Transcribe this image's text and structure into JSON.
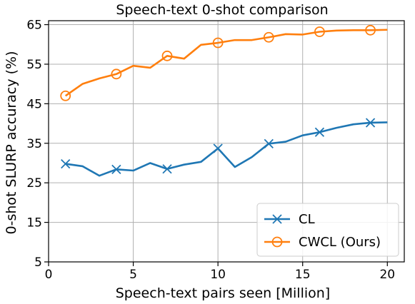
{
  "chart_data": {
    "type": "line",
    "title": "Speech-text 0-shot comparison",
    "xlabel": "Speech-text pairs seen [Million]",
    "ylabel": "0-shot SLURP accuracy (%)",
    "xlim": [
      0,
      21
    ],
    "ylim": [
      5,
      66
    ],
    "xticks": [
      0,
      5,
      10,
      15,
      20
    ],
    "yticks": [
      5,
      15,
      25,
      35,
      45,
      55,
      65
    ],
    "grid": true,
    "legend_position": "lower-right",
    "x": [
      1,
      2,
      3,
      4,
      5,
      6,
      7,
      8,
      9,
      10,
      11,
      12,
      13,
      14,
      15,
      16,
      17,
      18,
      19,
      20
    ],
    "series": [
      {
        "name": "CL",
        "color": "#1f77b4",
        "marker": "x",
        "marker_indices": [
          0,
          3,
          6,
          9,
          12,
          15,
          18
        ],
        "values": [
          29.8,
          29.2,
          26.8,
          28.4,
          28.1,
          30.0,
          28.5,
          29.6,
          30.3,
          33.7,
          29.0,
          31.5,
          34.9,
          35.4,
          37.0,
          37.8,
          38.9,
          39.8,
          40.2,
          40.3
        ]
      },
      {
        "name": "CWCL (Ours)",
        "color": "#ff7f0e",
        "marker": "circle",
        "marker_indices": [
          0,
          3,
          6,
          9,
          12,
          15,
          18
        ],
        "values": [
          47.0,
          50.0,
          51.4,
          52.5,
          54.6,
          54.1,
          57.1,
          56.4,
          59.9,
          60.4,
          61.1,
          61.1,
          61.8,
          62.6,
          62.5,
          63.2,
          63.5,
          63.6,
          63.6,
          63.7
        ]
      }
    ]
  }
}
